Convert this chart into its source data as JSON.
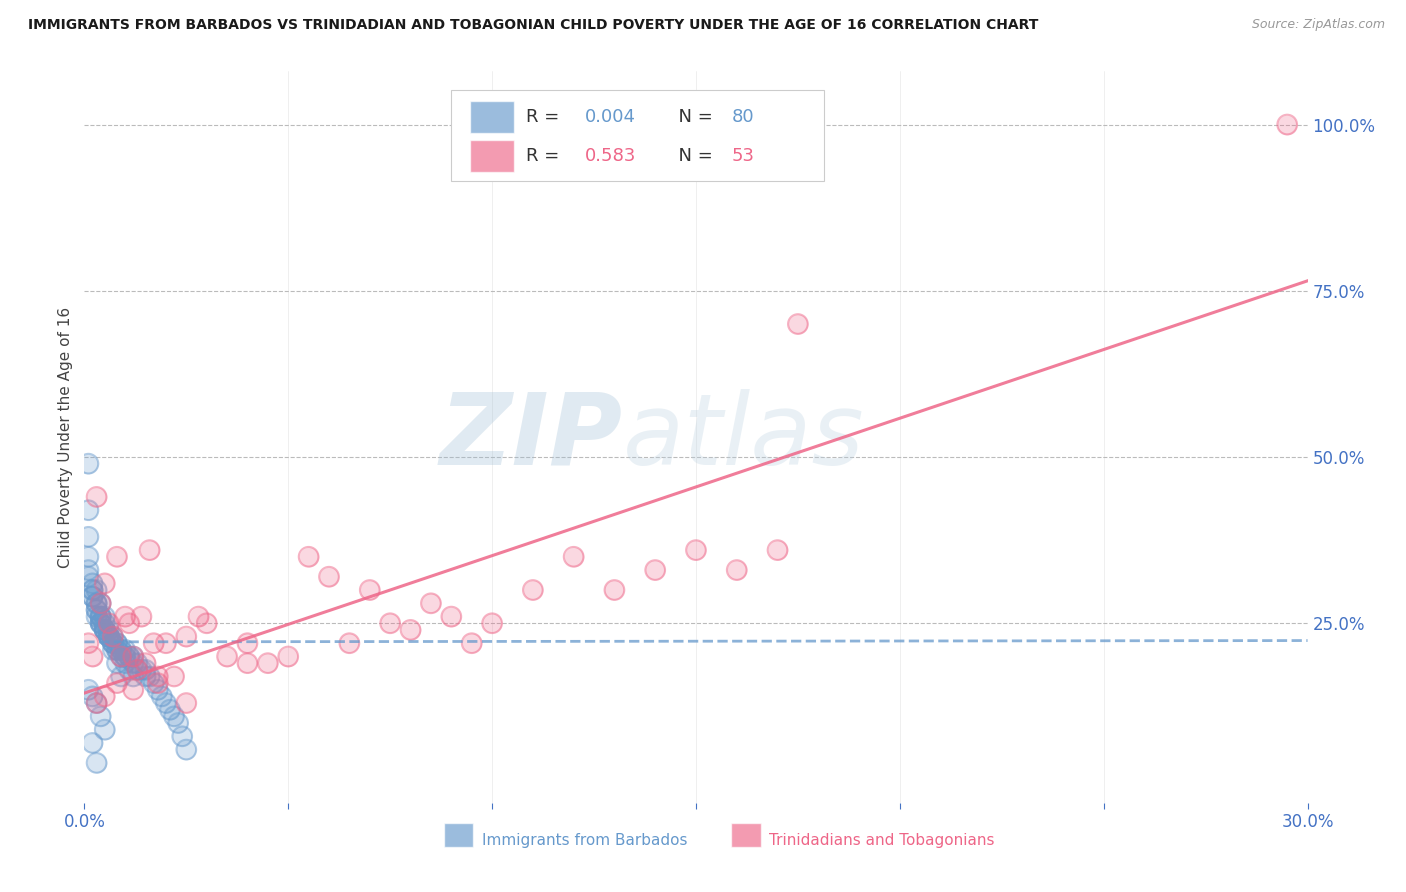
{
  "title": "IMMIGRANTS FROM BARBADOS VS TRINIDADIAN AND TOBAGONIAN CHILD POVERTY UNDER THE AGE OF 16 CORRELATION CHART",
  "source": "Source: ZipAtlas.com",
  "ylabel": "Child Poverty Under the Age of 16",
  "xlim": [
    0.0,
    0.3
  ],
  "ylim": [
    -0.02,
    1.08
  ],
  "ytick_labels": [
    "25.0%",
    "50.0%",
    "75.0%",
    "100.0%"
  ],
  "ytick_vals": [
    0.25,
    0.5,
    0.75,
    1.0
  ],
  "xtick_labels": [
    "0.0%",
    "30.0%"
  ],
  "xtick_vals": [
    0.0,
    0.3
  ],
  "title_color": "#222222",
  "axis_color": "#4472c4",
  "watermark_zip": "ZIP",
  "watermark_atlas": "atlas",
  "blue_color": "#6699cc",
  "pink_color": "#ee6688",
  "grid_color": "#bbbbbb",
  "blue_line_y": [
    0.222,
    0.224
  ],
  "pink_line_x": [
    0.0,
    0.3
  ],
  "pink_line_y": [
    0.145,
    0.765
  ],
  "blue_scatter_x": [
    0.001,
    0.001,
    0.001,
    0.001,
    0.001,
    0.002,
    0.002,
    0.002,
    0.002,
    0.003,
    0.003,
    0.003,
    0.003,
    0.004,
    0.004,
    0.004,
    0.004,
    0.004,
    0.005,
    0.005,
    0.005,
    0.005,
    0.006,
    0.006,
    0.006,
    0.007,
    0.007,
    0.007,
    0.008,
    0.008,
    0.008,
    0.009,
    0.009,
    0.01,
    0.01,
    0.01,
    0.011,
    0.011,
    0.012,
    0.012,
    0.013,
    0.013,
    0.014,
    0.015,
    0.015,
    0.016,
    0.017,
    0.018,
    0.019,
    0.02,
    0.021,
    0.022,
    0.023,
    0.024,
    0.025,
    0.001,
    0.002,
    0.003,
    0.004,
    0.005,
    0.006,
    0.007,
    0.008,
    0.009,
    0.01,
    0.011,
    0.012,
    0.003,
    0.004,
    0.005,
    0.006,
    0.007,
    0.008,
    0.009,
    0.001,
    0.002,
    0.003,
    0.004,
    0.005,
    0.002,
    0.003
  ],
  "blue_scatter_y": [
    0.49,
    0.42,
    0.38,
    0.35,
    0.33,
    0.31,
    0.3,
    0.3,
    0.29,
    0.28,
    0.28,
    0.27,
    0.26,
    0.26,
    0.26,
    0.25,
    0.25,
    0.25,
    0.24,
    0.24,
    0.24,
    0.24,
    0.23,
    0.23,
    0.23,
    0.23,
    0.22,
    0.22,
    0.22,
    0.22,
    0.21,
    0.21,
    0.21,
    0.21,
    0.2,
    0.2,
    0.2,
    0.2,
    0.2,
    0.19,
    0.19,
    0.18,
    0.18,
    0.18,
    0.17,
    0.17,
    0.16,
    0.15,
    0.14,
    0.13,
    0.12,
    0.11,
    0.1,
    0.08,
    0.06,
    0.32,
    0.29,
    0.27,
    0.26,
    0.25,
    0.24,
    0.22,
    0.21,
    0.2,
    0.19,
    0.18,
    0.17,
    0.3,
    0.28,
    0.26,
    0.23,
    0.21,
    0.19,
    0.17,
    0.15,
    0.14,
    0.13,
    0.11,
    0.09,
    0.07,
    0.04
  ],
  "pink_scatter_x": [
    0.001,
    0.002,
    0.003,
    0.004,
    0.005,
    0.006,
    0.007,
    0.008,
    0.009,
    0.01,
    0.011,
    0.012,
    0.013,
    0.014,
    0.015,
    0.016,
    0.017,
    0.018,
    0.02,
    0.022,
    0.025,
    0.028,
    0.03,
    0.035,
    0.04,
    0.045,
    0.05,
    0.055,
    0.06,
    0.065,
    0.07,
    0.075,
    0.08,
    0.085,
    0.09,
    0.095,
    0.1,
    0.11,
    0.12,
    0.13,
    0.14,
    0.15,
    0.16,
    0.17,
    0.175,
    0.003,
    0.005,
    0.008,
    0.012,
    0.018,
    0.025,
    0.04,
    0.295
  ],
  "pink_scatter_y": [
    0.22,
    0.2,
    0.44,
    0.28,
    0.31,
    0.25,
    0.23,
    0.35,
    0.2,
    0.26,
    0.25,
    0.2,
    0.18,
    0.26,
    0.19,
    0.36,
    0.22,
    0.16,
    0.22,
    0.17,
    0.23,
    0.26,
    0.25,
    0.2,
    0.22,
    0.19,
    0.2,
    0.35,
    0.32,
    0.22,
    0.3,
    0.25,
    0.24,
    0.28,
    0.26,
    0.22,
    0.25,
    0.3,
    0.35,
    0.3,
    0.33,
    0.36,
    0.33,
    0.36,
    0.7,
    0.13,
    0.14,
    0.16,
    0.15,
    0.17,
    0.13,
    0.19,
    1.0
  ]
}
